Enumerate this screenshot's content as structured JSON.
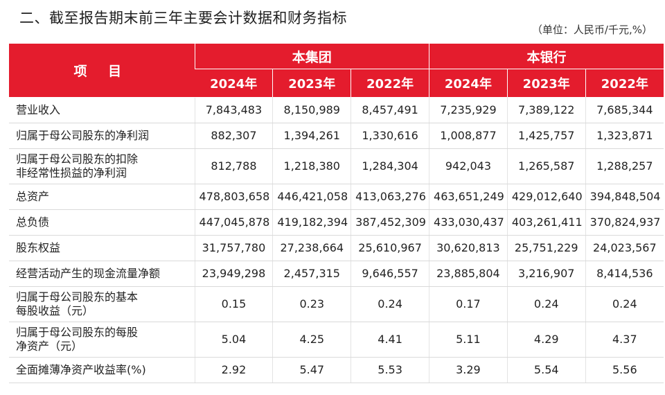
{
  "title": "二、截至报告期末前三年主要会计数据和财务指标",
  "unit": "（单位：人民币/千元,%）",
  "header": {
    "item": "项 目",
    "group1": "本集团",
    "group2": "本银行",
    "years": [
      "2024年",
      "2023年",
      "2022年",
      "2024年",
      "2023年",
      "2022年"
    ]
  },
  "rows": [
    {
      "label": "营业收入",
      "values": [
        "7,843,483",
        "8,150,989",
        "8,457,491",
        "7,235,929",
        "7,389,122",
        "7,685,344"
      ]
    },
    {
      "label": "归属于母公司股东的净利润",
      "values": [
        "882,307",
        "1,394,261",
        "1,330,616",
        "1,008,877",
        "1,425,757",
        "1,323,871"
      ]
    },
    {
      "label": "归属于母公司股东的扣除\n非经常性损益的净利润",
      "values": [
        "812,788",
        "1,218,380",
        "1,284,304",
        "942,043",
        "1,265,587",
        "1,288,257"
      ]
    },
    {
      "label": "总资产",
      "values": [
        "478,803,658",
        "446,421,058",
        "413,063,276",
        "463,651,249",
        "429,012,640",
        "394,848,504"
      ]
    },
    {
      "label": "总负债",
      "values": [
        "447,045,878",
        "419,182,394",
        "387,452,309",
        "433,030,437",
        "403,261,411",
        "370,824,937"
      ]
    },
    {
      "label": "股东权益",
      "values": [
        "31,757,780",
        "27,238,664",
        "25,610,967",
        "30,620,813",
        "25,751,229",
        "24,023,567"
      ]
    },
    {
      "label": "经营活动产生的现金流量净额",
      "values": [
        "23,949,298",
        "2,457,315",
        "9,646,557",
        "23,885,804",
        "3,216,907",
        "8,414,536"
      ]
    },
    {
      "label": "归属于母公司股东的基本\n每股收益（元）",
      "values": [
        "0.15",
        "0.23",
        "0.24",
        "0.17",
        "0.24",
        "0.24"
      ]
    },
    {
      "label": "归属于母公司股东的每股\n净资产（元）",
      "values": [
        "5.04",
        "4.25",
        "4.41",
        "5.11",
        "4.29",
        "4.37"
      ]
    },
    {
      "label": "全面摊薄净资产收益率(%)",
      "values": [
        "2.92",
        "5.47",
        "5.53",
        "3.29",
        "5.54",
        "5.56"
      ]
    }
  ]
}
